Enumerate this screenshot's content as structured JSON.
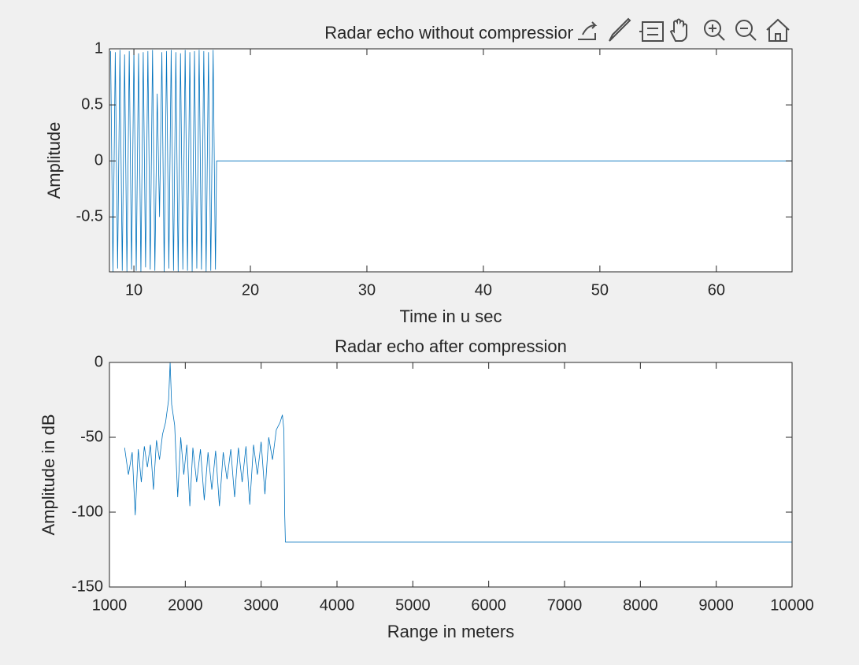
{
  "chart_data": [
    {
      "type": "line",
      "title": "Radar echo without compression",
      "xlabel": "Time in u sec",
      "ylabel": "Amplitude",
      "color": "#0072bd",
      "xlim": [
        7.9,
        66.5
      ],
      "ylim": [
        -0.99,
        1
      ],
      "xticks": [
        10,
        20,
        30,
        40,
        50,
        60
      ],
      "yticks": [
        -0.5,
        0,
        0.5,
        1
      ],
      "x": [
        8.0,
        8.2,
        8.4,
        8.6,
        8.8,
        9.0,
        9.2,
        9.4,
        9.6,
        9.8,
        10.0,
        10.2,
        10.4,
        10.6,
        10.8,
        11.0,
        11.2,
        11.4,
        11.6,
        11.8,
        12.0,
        12.2,
        12.4,
        12.6,
        12.8,
        13.0,
        13.2,
        13.4,
        13.6,
        13.8,
        14.0,
        14.2,
        14.4,
        14.6,
        14.8,
        15.0,
        15.2,
        15.4,
        15.6,
        15.8,
        16.0,
        16.2,
        16.4,
        16.6,
        16.8,
        17.0,
        17.1,
        66.5
      ],
      "values": [
        0.98,
        -0.99,
        0.97,
        -0.96,
        0.99,
        -0.98,
        0.95,
        -0.99,
        0.98,
        -0.97,
        0.99,
        -0.98,
        0.96,
        -0.99,
        0.97,
        -0.95,
        0.98,
        -0.97,
        0.99,
        -0.98,
        0.6,
        -0.5,
        0.97,
        -0.99,
        0.98,
        -0.96,
        0.99,
        -0.98,
        0.97,
        -0.99,
        0.96,
        -0.97,
        0.99,
        -0.98,
        0.97,
        -0.99,
        0.98,
        -0.96,
        0.99,
        -0.97,
        0.98,
        -0.99,
        0.97,
        -0.98,
        0.99,
        -0.97,
        0,
        0
      ]
    },
    {
      "type": "line",
      "title": "Radar echo after compression",
      "xlabel": "Range in meters",
      "ylabel": "Amplitude in dB",
      "color": "#0072bd",
      "xlim": [
        1000,
        10000
      ],
      "ylim": [
        -150,
        0
      ],
      "xticks": [
        1000,
        2000,
        3000,
        4000,
        5000,
        6000,
        7000,
        8000,
        9000,
        10000
      ],
      "yticks": [
        -150,
        -100,
        -50,
        0
      ],
      "x": [
        1200,
        1250,
        1300,
        1340,
        1380,
        1420,
        1460,
        1500,
        1540,
        1580,
        1620,
        1660,
        1700,
        1740,
        1780,
        1800,
        1820,
        1860,
        1900,
        1940,
        1980,
        2020,
        2060,
        2100,
        2150,
        2200,
        2250,
        2300,
        2350,
        2400,
        2450,
        2500,
        2550,
        2600,
        2650,
        2700,
        2750,
        2800,
        2850,
        2900,
        2950,
        3000,
        3050,
        3100,
        3150,
        3200,
        3250,
        3280,
        3300,
        3310,
        3320,
        10000
      ],
      "values": [
        -57,
        -75,
        -60,
        -102,
        -58,
        -80,
        -56,
        -70,
        -55,
        -85,
        -52,
        -65,
        -48,
        -40,
        -25,
        0,
        -28,
        -42,
        -90,
        -50,
        -75,
        -55,
        -96,
        -57,
        -80,
        -58,
        -92,
        -60,
        -85,
        -59,
        -96,
        -60,
        -78,
        -58,
        -90,
        -57,
        -80,
        -56,
        -95,
        -55,
        -75,
        -53,
        -88,
        -50,
        -65,
        -45,
        -40,
        -35,
        -45,
        -100,
        -120,
        -120
      ]
    }
  ]
}
